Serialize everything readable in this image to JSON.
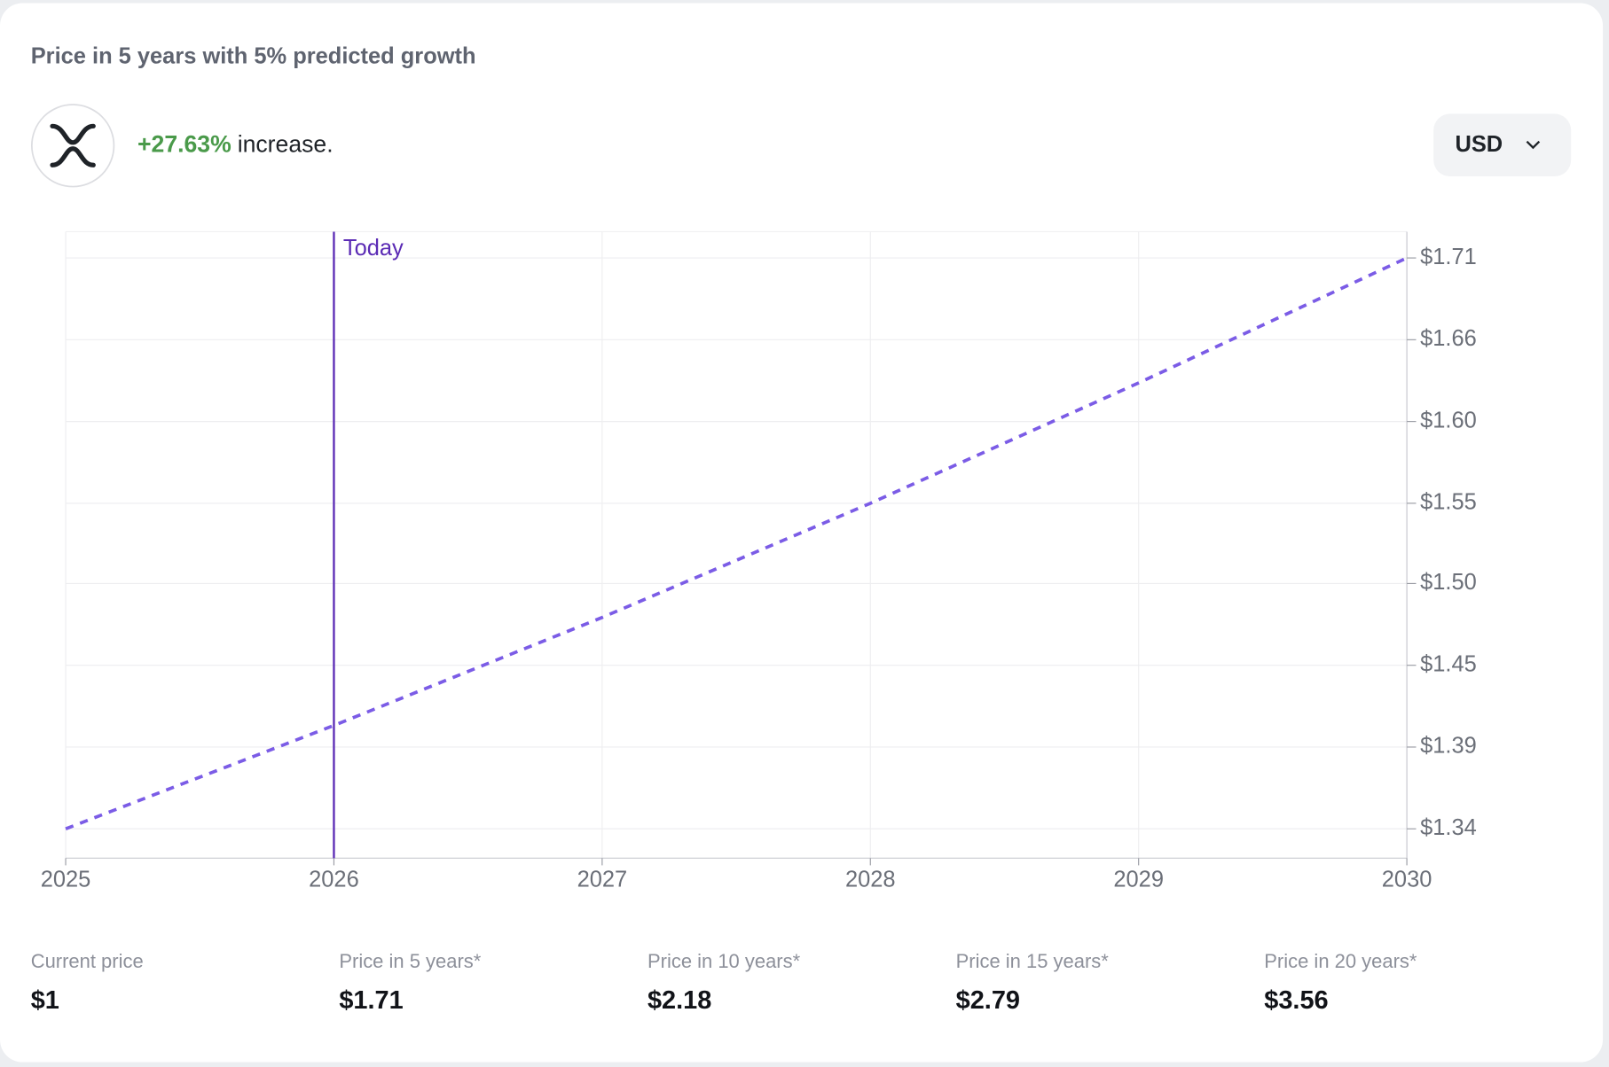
{
  "header": {
    "title": "Price in 5 years with 5% predicted growth",
    "change": "+27.63%",
    "change_suffix": "increase.",
    "currency": "USD"
  },
  "chart_data": {
    "type": "line",
    "x": [
      2025,
      2026,
      2027,
      2028,
      2029,
      2030
    ],
    "series": [
      {
        "color": "#7b5ce6",
        "values": [
          1.34,
          1.407,
          1.477,
          1.551,
          1.629,
          1.71
        ]
      }
    ],
    "xlim": [
      2025,
      2030
    ],
    "xticks": [
      2025,
      2026,
      2027,
      2028,
      2029,
      2030
    ],
    "ylim": [
      1.321,
      1.727
    ],
    "yticks": [
      {
        "value": 1.34,
        "label": "$1.34"
      },
      {
        "value": 1.393,
        "label": "$1.39"
      },
      {
        "value": 1.446,
        "label": "$1.45"
      },
      {
        "value": 1.499,
        "label": "$1.50"
      },
      {
        "value": 1.551,
        "label": "$1.55"
      },
      {
        "value": 1.604,
        "label": "$1.60"
      },
      {
        "value": 1.657,
        "label": "$1.66"
      },
      {
        "value": 1.71,
        "label": "$1.71"
      }
    ],
    "grid": true,
    "marker": {
      "label": "Today",
      "x": 2026,
      "color": "#5b2bb5"
    }
  },
  "stats": [
    {
      "label": "Current price",
      "value": "$1"
    },
    {
      "label": "Price in 5 years*",
      "value": "$1.71"
    },
    {
      "label": "Price in 10 years*",
      "value": "$2.18"
    },
    {
      "label": "Price in 15 years*",
      "value": "$2.79"
    },
    {
      "label": "Price in 20 years*",
      "value": "$3.56"
    }
  ]
}
